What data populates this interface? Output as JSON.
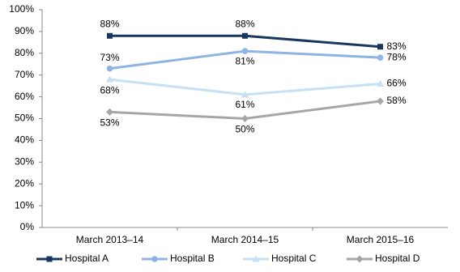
{
  "chart_data": {
    "type": "line",
    "categories": [
      "March 2013–14",
      "March 2014–15",
      "March 2015–16"
    ],
    "series": [
      {
        "name": "Hospital A",
        "color": "#17375e",
        "marker": "square",
        "values": [
          88,
          88,
          83
        ],
        "value_labels": [
          "88%",
          "88%",
          "83%"
        ]
      },
      {
        "name": "Hospital B",
        "color": "#8db4e2",
        "marker": "circle",
        "values": [
          73,
          81,
          78
        ],
        "value_labels": [
          "73%",
          "81%",
          "78%"
        ]
      },
      {
        "name": "Hospital C",
        "color": "#c6e0f4",
        "marker": "triangle",
        "values": [
          68,
          61,
          66
        ],
        "value_labels": [
          "68%",
          "61%",
          "66%"
        ]
      },
      {
        "name": "Hospital D",
        "color": "#a6a6a6",
        "marker": "diamond",
        "values": [
          53,
          50,
          58
        ],
        "value_labels": [
          "53%",
          "50%",
          "58%"
        ]
      }
    ],
    "ylim": [
      0,
      100
    ],
    "yticks": [
      {
        "value": 0,
        "label": "0%"
      },
      {
        "value": 10,
        "label": "10%"
      },
      {
        "value": 20,
        "label": "20%"
      },
      {
        "value": 30,
        "label": "30%"
      },
      {
        "value": 40,
        "label": "40%"
      },
      {
        "value": 50,
        "label": "50%"
      },
      {
        "value": 60,
        "label": "60%"
      },
      {
        "value": 70,
        "label": "70%"
      },
      {
        "value": 80,
        "label": "80%"
      },
      {
        "value": 90,
        "label": "90%"
      },
      {
        "value": 100,
        "label": "100%"
      }
    ],
    "grid": false,
    "legend": "bottom"
  }
}
